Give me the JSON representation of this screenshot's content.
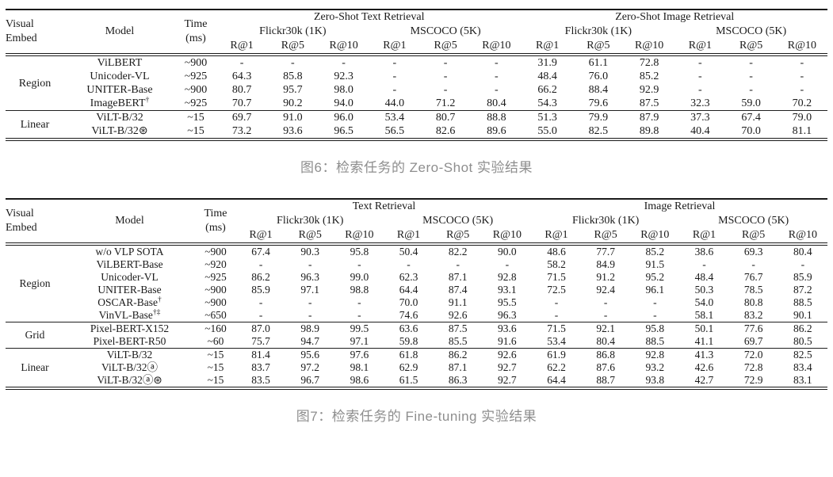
{
  "page": {
    "background": "#ffffff",
    "text_color": "#1a1a1a",
    "rule_color": "#1a1a1a",
    "caption_color": "#8e8e8e"
  },
  "tables": [
    {
      "name": "zero-shot-retrieval",
      "caption": "图6：检索任务的 Zero-Shot 实验结果",
      "header": {
        "embed_lines": [
          "Visual",
          "Embed"
        ],
        "model": "Model",
        "time_lines": [
          "Time",
          "(ms)"
        ],
        "groups": [
          "Zero-Shot Text Retrieval",
          "Zero-Shot Image Retrieval"
        ],
        "datasets": [
          "Flickr30k (1K)",
          "MSCOCO (5K)",
          "Flickr30k (1K)",
          "MSCOCO (5K)"
        ],
        "metrics": [
          "R@1",
          "R@5",
          "R@10"
        ]
      },
      "groups": [
        {
          "embed": "Region",
          "rows": [
            {
              "model": "ViLBERT",
              "sup": "",
              "time": "~900",
              "values": [
                "-",
                "-",
                "-",
                "-",
                "-",
                "-",
                "31.9",
                "61.1",
                "72.8",
                "-",
                "-",
                "-"
              ]
            },
            {
              "model": "Unicoder-VL",
              "sup": "",
              "time": "~925",
              "values": [
                "64.3",
                "85.8",
                "92.3",
                "-",
                "-",
                "-",
                "48.4",
                "76.0",
                "85.2",
                "-",
                "-",
                "-"
              ]
            },
            {
              "model": "UNITER-Base",
              "sup": "",
              "time": "~900",
              "values": [
                "80.7",
                "95.7",
                "98.0",
                "-",
                "-",
                "-",
                "66.2",
                "88.4",
                "92.9",
                "-",
                "-",
                "-"
              ]
            },
            {
              "model": "ImageBERT",
              "sup": "†",
              "time": "~925",
              "values": [
                "70.7",
                "90.2",
                "94.0",
                "44.0",
                "71.2",
                "80.4",
                "54.3",
                "79.6",
                "87.5",
                "32.3",
                "59.0",
                "70.2"
              ]
            }
          ]
        },
        {
          "embed": "Linear",
          "rows": [
            {
              "model": "ViLT-B/32",
              "sup": "",
              "time": "~15",
              "values": [
                "69.7",
                "91.0",
                "96.0",
                "53.4",
                "80.7",
                "88.8",
                "51.3",
                "79.9",
                "87.9",
                "37.3",
                "67.4",
                "79.0"
              ]
            },
            {
              "model": "ViLT-B/32⊛",
              "sup": "",
              "time": "~15",
              "values": [
                "73.2",
                "93.6",
                "96.5",
                "56.5",
                "82.6",
                "89.6",
                "55.0",
                "82.5",
                "89.8",
                "40.4",
                "70.0",
                "81.1"
              ]
            }
          ]
        }
      ]
    },
    {
      "name": "fine-tuning-retrieval",
      "caption": "图7：检索任务的 Fine-tuning 实验结果",
      "header": {
        "embed_lines": [
          "Visual",
          "Embed"
        ],
        "model": "Model",
        "time_lines": [
          "Time",
          "(ms)"
        ],
        "groups": [
          "Text Retrieval",
          "Image Retrieval"
        ],
        "datasets": [
          "Flickr30k (1K)",
          "MSCOCO (5K)",
          "Flickr30k (1K)",
          "MSCOCO (5K)"
        ],
        "metrics": [
          "R@1",
          "R@5",
          "R@10"
        ]
      },
      "groups": [
        {
          "embed": "Region",
          "rows": [
            {
              "model": "w/o VLP SOTA",
              "sup": "",
              "time": "~900",
              "values": [
                "67.4",
                "90.3",
                "95.8",
                "50.4",
                "82.2",
                "90.0",
                "48.6",
                "77.7",
                "85.2",
                "38.6",
                "69.3",
                "80.4"
              ]
            },
            {
              "model": "ViLBERT-Base",
              "sup": "",
              "time": "~920",
              "values": [
                "-",
                "-",
                "-",
                "-",
                "-",
                "-",
                "58.2",
                "84.9",
                "91.5",
                "-",
                "-",
                "-"
              ]
            },
            {
              "model": "Unicoder-VL",
              "sup": "",
              "time": "~925",
              "values": [
                "86.2",
                "96.3",
                "99.0",
                "62.3",
                "87.1",
                "92.8",
                "71.5",
                "91.2",
                "95.2",
                "48.4",
                "76.7",
                "85.9"
              ]
            },
            {
              "model": "UNITER-Base",
              "sup": "",
              "time": "~900",
              "values": [
                "85.9",
                "97.1",
                "98.8",
                "64.4",
                "87.4",
                "93.1",
                "72.5",
                "92.4",
                "96.1",
                "50.3",
                "78.5",
                "87.2"
              ]
            },
            {
              "model": "OSCAR-Base",
              "sup": "†",
              "time": "~900",
              "values": [
                "-",
                "-",
                "-",
                "70.0",
                "91.1",
                "95.5",
                "-",
                "-",
                "-",
                "54.0",
                "80.8",
                "88.5"
              ]
            },
            {
              "model": "VinVL-Base",
              "sup": "†‡",
              "time": "~650",
              "values": [
                "-",
                "-",
                "-",
                "74.6",
                "92.6",
                "96.3",
                "-",
                "-",
                "-",
                "58.1",
                "83.2",
                "90.1"
              ]
            }
          ]
        },
        {
          "embed": "Grid",
          "rows": [
            {
              "model": "Pixel-BERT-X152",
              "sup": "",
              "time": "~160",
              "values": [
                "87.0",
                "98.9",
                "99.5",
                "63.6",
                "87.5",
                "93.6",
                "71.5",
                "92.1",
                "95.8",
                "50.1",
                "77.6",
                "86.2"
              ]
            },
            {
              "model": "Pixel-BERT-R50",
              "sup": "",
              "time": "~60",
              "values": [
                "75.7",
                "94.7",
                "97.1",
                "59.8",
                "85.5",
                "91.6",
                "53.4",
                "80.4",
                "88.5",
                "41.1",
                "69.7",
                "80.5"
              ]
            }
          ]
        },
        {
          "embed": "Linear",
          "rows": [
            {
              "model": "ViLT-B/32",
              "sup": "",
              "time": "~15",
              "values": [
                "81.4",
                "95.6",
                "97.6",
                "61.8",
                "86.2",
                "92.6",
                "61.9",
                "86.8",
                "92.8",
                "41.3",
                "72.0",
                "82.5"
              ]
            },
            {
              "model": "ViLT-B/32ⓐ",
              "sup": "",
              "time": "~15",
              "values": [
                "83.7",
                "97.2",
                "98.1",
                "62.9",
                "87.1",
                "92.7",
                "62.2",
                "87.6",
                "93.2",
                "42.6",
                "72.8",
                "83.4"
              ]
            },
            {
              "model": "ViLT-B/32ⓐ⊛",
              "sup": "",
              "time": "~15",
              "values": [
                "83.5",
                "96.7",
                "98.6",
                "61.5",
                "86.3",
                "92.7",
                "64.4",
                "88.7",
                "93.8",
                "42.7",
                "72.9",
                "83.1"
              ]
            }
          ]
        }
      ]
    }
  ]
}
